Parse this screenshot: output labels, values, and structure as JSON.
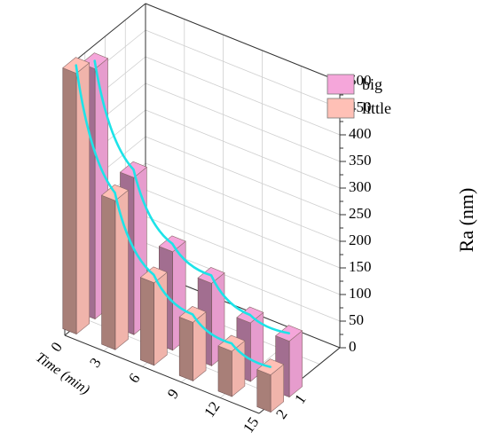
{
  "chart_data": {
    "type": "bar",
    "style": "3d-bar",
    "x_axis": {
      "label": "Time (min)",
      "ticks": [
        "0",
        "3",
        "6",
        "9",
        "12",
        "15"
      ]
    },
    "y_axis": {
      "label": "",
      "ticks": [
        "1",
        "2"
      ]
    },
    "z_axis": {
      "label": "Ra (nm)",
      "ticks": [
        "0",
        "50",
        "100",
        "150",
        "200",
        "250",
        "300",
        "350",
        "400",
        "450",
        "500"
      ],
      "range": [
        0,
        500
      ]
    },
    "x": [
      0,
      3,
      6,
      9,
      12,
      15
    ],
    "series": [
      {
        "name": "big",
        "row": "1",
        "color": "#f5a6da",
        "values": [
          470,
          295,
          185,
          155,
          110,
          105
        ]
      },
      {
        "name": "little",
        "row": "2",
        "color": "#ffc0b6",
        "values": [
          490,
          280,
          155,
          110,
          85,
          70
        ]
      }
    ],
    "trend_line_color": "#1de3e8",
    "legend": {
      "position": "top-right",
      "entries": [
        "big",
        "little"
      ]
    },
    "grid": true
  }
}
